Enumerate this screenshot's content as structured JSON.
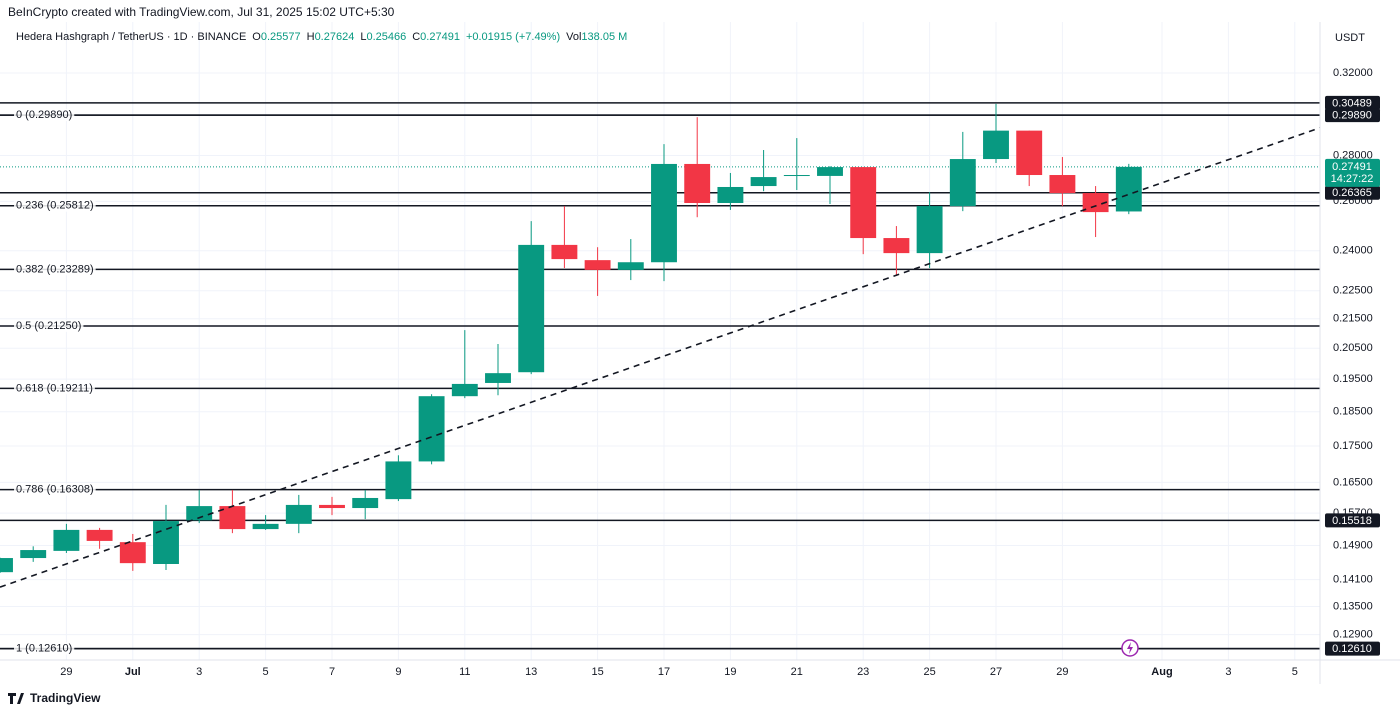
{
  "chart_data": {
    "type": "candlestick",
    "title": "BeInCrypto created with TradingView.com, Jul 31, 2025 15:02 UTC+5:30",
    "symbol": "Hedera Hashgraph / TetherUS · 1D · BINANCE",
    "legend_labels": [
      "O",
      "H",
      "L",
      "C"
    ],
    "change": "+0.01915 (+7.49%)",
    "volume_label": "Vol",
    "volume": "138.05 M",
    "currency": "USDT",
    "footer": "TradingView",
    "up_color": "#089981",
    "down_color": "#f23645",
    "x": [
      "2025-06-27",
      "2025-06-28",
      "2025-06-29",
      "2025-06-30",
      "2025-07-01",
      "2025-07-02",
      "2025-07-03",
      "2025-07-04",
      "2025-07-05",
      "2025-07-06",
      "2025-07-07",
      "2025-07-08",
      "2025-07-09",
      "2025-07-10",
      "2025-07-11",
      "2025-07-12",
      "2025-07-13",
      "2025-07-14",
      "2025-07-15",
      "2025-07-16",
      "2025-07-17",
      "2025-07-18",
      "2025-07-19",
      "2025-07-20",
      "2025-07-21",
      "2025-07-22",
      "2025-07-23",
      "2025-07-24",
      "2025-07-25",
      "2025-07-26",
      "2025-07-27",
      "2025-07-28",
      "2025-07-29",
      "2025-07-30",
      "2025-07-31"
    ],
    "open": [
      0.1427,
      0.146,
      0.1477,
      0.1528,
      0.1498,
      0.1446,
      0.1552,
      0.1588,
      0.153,
      0.1543,
      0.1591,
      0.1583,
      0.1606,
      0.1707,
      0.1897,
      0.1938,
      0.1972,
      0.2423,
      0.2364,
      0.2327,
      0.2356,
      0.2762,
      0.2593,
      0.2665,
      0.2709,
      0.2709,
      0.2748,
      0.245,
      0.2391,
      0.258,
      0.2784,
      0.2915,
      0.2713,
      0.2635,
      0.25577
    ],
    "high": [
      0.1461,
      0.1488,
      0.1543,
      0.1533,
      0.1518,
      0.1591,
      0.163,
      0.163,
      0.1565,
      0.1617,
      0.1612,
      0.163,
      0.1724,
      0.1903,
      0.2111,
      0.2064,
      0.2518,
      0.258,
      0.2414,
      0.2446,
      0.2852,
      0.2979,
      0.2722,
      0.2825,
      0.288,
      0.2753,
      0.2748,
      0.2498,
      0.2639,
      0.2909,
      0.3044,
      0.2915,
      0.2793,
      0.2665,
      0.27624
    ],
    "low": [
      0.1425,
      0.1451,
      0.1472,
      0.1482,
      0.143,
      0.1432,
      0.1545,
      0.152,
      0.1528,
      0.152,
      0.1565,
      0.1555,
      0.1601,
      0.1699,
      0.1891,
      0.19,
      0.1966,
      0.2334,
      0.2231,
      0.2289,
      0.2285,
      0.2534,
      0.2564,
      0.2643,
      0.2648,
      0.2589,
      0.2387,
      0.2304,
      0.2334,
      0.2559,
      0.2766,
      0.2665,
      0.258,
      0.2454,
      0.25466
    ],
    "close": [
      0.146,
      0.1479,
      0.1528,
      0.1501,
      0.1448,
      0.155,
      0.1588,
      0.153,
      0.1543,
      0.1591,
      0.1583,
      0.1609,
      0.1707,
      0.1897,
      0.1935,
      0.1969,
      0.2423,
      0.2368,
      0.2327,
      0.2356,
      0.2762,
      0.2593,
      0.2661,
      0.2704,
      0.2713,
      0.2748,
      0.245,
      0.2391,
      0.258,
      0.2784,
      0.2915,
      0.2713,
      0.2635,
      0.2555,
      0.27491
    ],
    "xlim": [
      "2025-06-27",
      "2025-08-06"
    ],
    "xticks": [
      {
        "value": "2025-06-29",
        "label": "29"
      },
      {
        "value": "2025-07-01",
        "label": "Jul"
      },
      {
        "value": "2025-07-03",
        "label": "3"
      },
      {
        "value": "2025-07-05",
        "label": "5"
      },
      {
        "value": "2025-07-07",
        "label": "7"
      },
      {
        "value": "2025-07-09",
        "label": "9"
      },
      {
        "value": "2025-07-11",
        "label": "11"
      },
      {
        "value": "2025-07-13",
        "label": "13"
      },
      {
        "value": "2025-07-15",
        "label": "15"
      },
      {
        "value": "2025-07-17",
        "label": "17"
      },
      {
        "value": "2025-07-19",
        "label": "19"
      },
      {
        "value": "2025-07-21",
        "label": "21"
      },
      {
        "value": "2025-07-23",
        "label": "23"
      },
      {
        "value": "2025-07-25",
        "label": "25"
      },
      {
        "value": "2025-07-27",
        "label": "27"
      },
      {
        "value": "2025-07-29",
        "label": "29"
      },
      {
        "value": "2025-08-01",
        "label": "Aug"
      },
      {
        "value": "2025-08-03",
        "label": "3"
      },
      {
        "value": "2025-08-05",
        "label": "5"
      }
    ],
    "ylim": [
      0.1238,
      0.3475
    ],
    "log_scale": true,
    "grid": true,
    "yticks": [
      {
        "value": 0.32,
        "label": "0.32000"
      },
      {
        "value": 0.28,
        "label": "0.28000"
      },
      {
        "value": 0.26,
        "label": "0.26000"
      },
      {
        "value": 0.24,
        "label": "0.24000"
      },
      {
        "value": 0.225,
        "label": "0.22500"
      },
      {
        "value": 0.215,
        "label": "0.21500"
      },
      {
        "value": 0.205,
        "label": "0.20500"
      },
      {
        "value": 0.195,
        "label": "0.19500"
      },
      {
        "value": 0.185,
        "label": "0.18500"
      },
      {
        "value": 0.175,
        "label": "0.17500"
      },
      {
        "value": 0.165,
        "label": "0.16500"
      },
      {
        "value": 0.157,
        "label": "0.15700"
      },
      {
        "value": 0.149,
        "label": "0.14900"
      },
      {
        "value": 0.141,
        "label": "0.14100"
      },
      {
        "value": 0.135,
        "label": "0.13500"
      },
      {
        "value": 0.129,
        "label": "0.12900"
      }
    ],
    "fib_levels": {
      "values": [
        0.2989,
        0.25812,
        0.23289,
        0.2125,
        0.19211,
        0.16308,
        0.1261
      ],
      "labels": [
        "0 (0.29890)",
        "0.236 (0.25812)",
        "0.382 (0.23289)",
        "0.5 (0.21250)",
        "0.618 (0.19211)",
        "0.786 (0.16308)",
        "1 (0.12610)"
      ]
    },
    "horizontal_lines": {
      "values": [
        0.30489,
        0.2989,
        0.26365,
        0.15518,
        0.1261
      ],
      "value_labels": [
        "0.30489",
        "0.29890",
        "0.26365",
        "0.15518",
        "0.12610"
      ]
    },
    "last_price": {
      "value": 0.27491,
      "countdown": "14:27:22"
    },
    "trendline": {
      "x": [
        "2025-06-27",
        "2025-08-05"
      ],
      "values": [
        0.1393,
        0.2887
      ]
    }
  }
}
